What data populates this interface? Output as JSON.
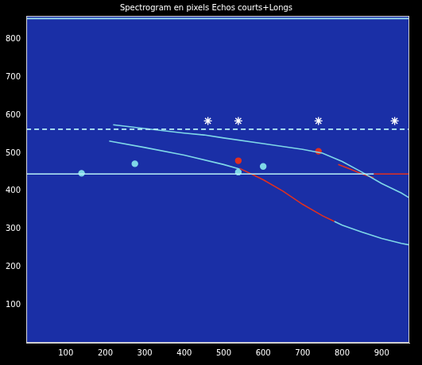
{
  "chart_data": {
    "type": "scatter",
    "title": "Spectrogram en pixels Echos courts+Longs",
    "xlim": [
      0,
      970
    ],
    "ylim": [
      0,
      862
    ],
    "xticks": [
      100,
      200,
      300,
      400,
      500,
      600,
      700,
      800,
      900
    ],
    "yticks": [
      100,
      200,
      300,
      400,
      500,
      600,
      700,
      800
    ],
    "grid": false,
    "series": [
      {
        "type": "line",
        "marker": "none",
        "line_style": "solid",
        "color": "#9fe3f0",
        "x": [
          0,
          970
        ],
        "values": [
          855,
          855
        ]
      },
      {
        "type": "line",
        "marker": "none",
        "line_style": "dashed",
        "color": "#b8f0f8",
        "x": [
          0,
          970
        ],
        "values": [
          563,
          563
        ]
      },
      {
        "type": "line",
        "marker": "none",
        "line_style": "solid",
        "color": "#b8f0f8",
        "x": [
          0,
          880
        ],
        "values": [
          445,
          445
        ]
      },
      {
        "type": "line",
        "marker": "none",
        "line_style": "solid",
        "color": "#e03020",
        "x": [
          880,
          970
        ],
        "values": [
          445,
          445
        ]
      },
      {
        "type": "line",
        "marker": "none",
        "line_style": "solid",
        "color": "#7fd8e8",
        "x": [
          220,
          300,
          400,
          450,
          500,
          600,
          700,
          750,
          800,
          850,
          900,
          950,
          970
        ],
        "values": [
          575,
          565,
          553,
          548,
          540,
          525,
          510,
          500,
          478,
          450,
          420,
          395,
          382
        ]
      },
      {
        "type": "line",
        "marker": "none",
        "line_style": "solid",
        "color": "#7fd8e8",
        "x": [
          210,
          300,
          400,
          500,
          540
        ],
        "values": [
          532,
          515,
          495,
          470,
          458
        ]
      },
      {
        "type": "line",
        "marker": "none",
        "line_style": "solid",
        "color": "#e03020",
        "x": [
          540,
          600,
          650,
          700,
          750,
          780
        ],
        "values": [
          460,
          430,
          400,
          365,
          335,
          320
        ]
      },
      {
        "type": "line",
        "marker": "none",
        "line_style": "solid",
        "color": "#7fd8e8",
        "x": [
          780,
          800,
          850,
          900,
          950,
          970
        ],
        "values": [
          320,
          310,
          292,
          275,
          262,
          258
        ]
      },
      {
        "type": "line",
        "marker": "none",
        "line_style": "solid",
        "color": "#e03020",
        "x": [
          790,
          820,
          850,
          880
        ],
        "values": [
          470,
          458,
          445,
          435
        ]
      },
      {
        "type": "scatter",
        "marker": "circle",
        "line_style": "none",
        "color": "#e03020",
        "x": [
          537,
          740
        ],
        "values": [
          480,
          505
        ]
      },
      {
        "type": "scatter",
        "marker": "circle",
        "line_style": "none",
        "color": "#7fd8e8",
        "x": [
          140,
          275,
          537,
          600
        ],
        "values": [
          447,
          472,
          450,
          465
        ]
      },
      {
        "type": "scatter",
        "marker": "star",
        "line_style": "none",
        "color": "#ffffff",
        "x": [
          460,
          537,
          740,
          933
        ],
        "values": [
          585,
          585,
          585,
          585
        ]
      }
    ],
    "tick_labels": true
  }
}
